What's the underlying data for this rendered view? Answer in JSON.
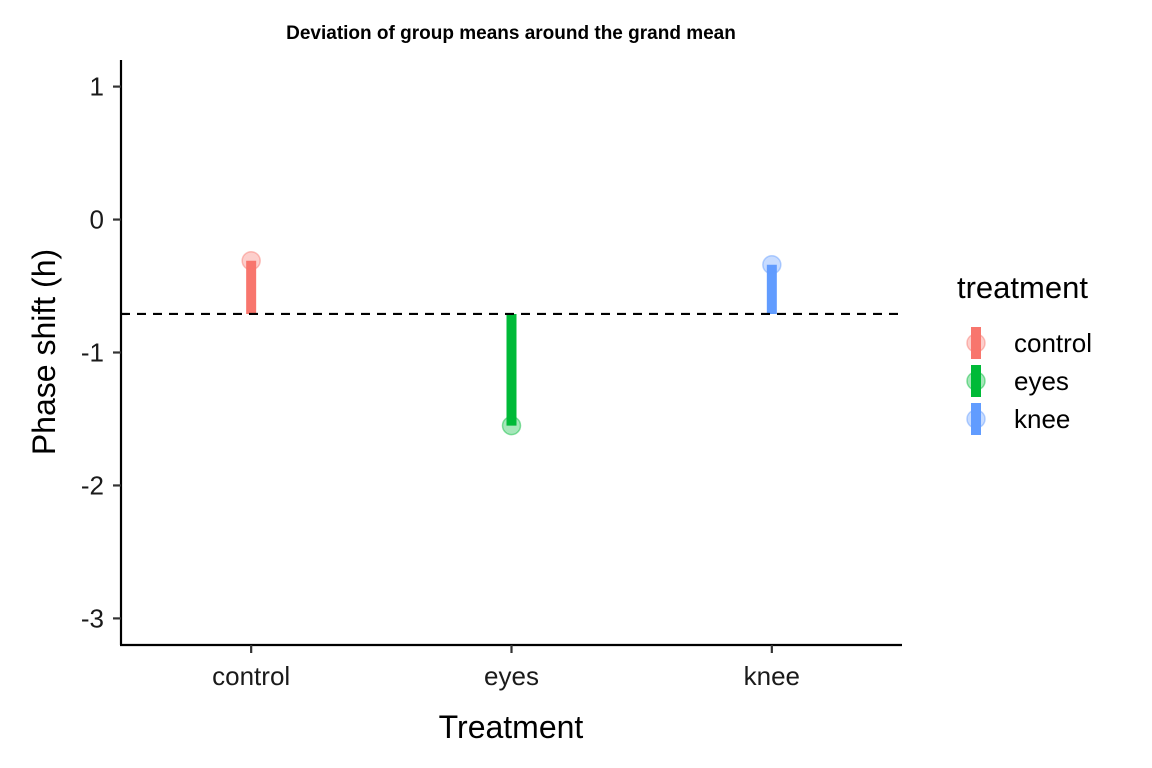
{
  "chart_data": {
    "type": "lollipop",
    "title": "Deviation of group means around the grand mean",
    "xlabel": "Treatment",
    "ylabel": "Phase shift (h)",
    "categories": [
      "control",
      "eyes",
      "knee"
    ],
    "values": [
      -0.31,
      -1.55,
      -0.34
    ],
    "grand_mean": -0.71,
    "ylim": [
      -3.2,
      1.2
    ],
    "yticks": [
      1,
      0,
      -1,
      -2,
      -3
    ],
    "ytick_labels": [
      "1",
      "0",
      "-1",
      "-2",
      "-3"
    ],
    "grid": false,
    "legend": {
      "title": "treatment",
      "placement": "right",
      "entries": [
        "control",
        "eyes",
        "knee"
      ]
    },
    "colors": {
      "control": "#F8766D",
      "eyes": "#00BA38",
      "knee": "#619CFF"
    }
  }
}
